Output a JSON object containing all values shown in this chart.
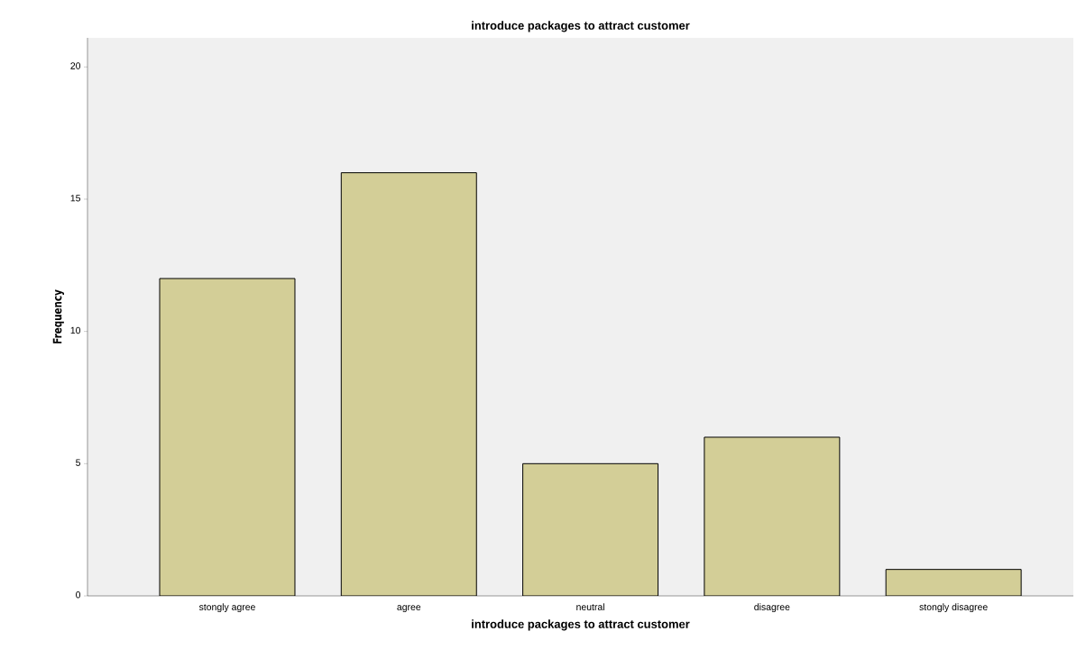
{
  "chart_data": {
    "type": "bar",
    "title": "introduce packages to attract customer",
    "xlabel": "introduce packages to attract customer",
    "ylabel": "Frequency",
    "categories": [
      "stongly agree",
      "agree",
      "neutral",
      "disagree",
      "stongly disagree"
    ],
    "values": [
      12,
      16,
      5,
      6,
      1
    ],
    "color": "#d3ce97",
    "ylim": [
      0,
      21.1
    ],
    "yticks": [
      0,
      5,
      10,
      15,
      20
    ],
    "grid": false
  }
}
